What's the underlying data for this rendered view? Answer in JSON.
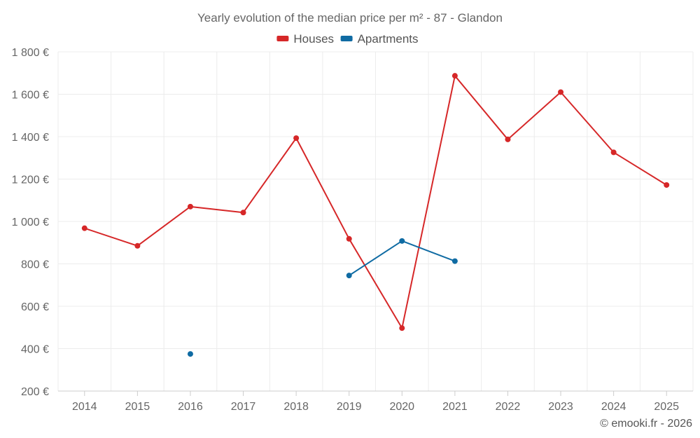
{
  "chart_data": {
    "type": "line",
    "title": "Yearly evolution of the median price per m² - 87 - Glandon",
    "categories": [
      "2014",
      "2015",
      "2016",
      "2017",
      "2018",
      "2019",
      "2020",
      "2021",
      "2022",
      "2023",
      "2024",
      "2025"
    ],
    "ylim": [
      200,
      1800
    ],
    "yticks": [
      200,
      400,
      600,
      800,
      1000,
      1200,
      1400,
      1600,
      1800
    ],
    "ytick_labels": [
      "200 €",
      "400 €",
      "600 €",
      "800 €",
      "1 000 €",
      "1 200 €",
      "1 400 €",
      "1 600 €",
      "1 800 €"
    ],
    "grid": true,
    "legend_position": "top-center",
    "series": [
      {
        "name": "Houses",
        "color": "#d62728",
        "values": [
          968,
          885,
          1070,
          1042,
          1393,
          918,
          497,
          1687,
          1387,
          1610,
          1326,
          1172
        ]
      },
      {
        "name": "Apartments",
        "color": "#0f6ba3",
        "values": [
          null,
          null,
          375,
          null,
          null,
          745,
          908,
          813,
          null,
          null,
          null,
          null
        ]
      }
    ],
    "credit": "© emooki.fr - 2026"
  }
}
